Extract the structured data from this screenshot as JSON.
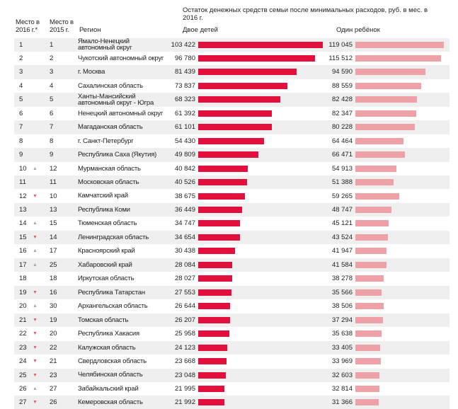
{
  "header": {
    "rank2016": "Место в 2016 г.*",
    "rank2015": "Место в 2015 г.",
    "region": "Регион",
    "title": "Остаток денежных средств семьи после минимальных расходов, руб. в мес. в 2016 г.",
    "two": "Двое детей",
    "one": "Один ребёнок"
  },
  "colors": {
    "two": "#e30f3c",
    "one": "#efa1a8",
    "up": "#aaaaaa",
    "down": "#e8606e"
  },
  "chart_data": {
    "type": "table",
    "title": "Остаток денежных средств семьи после минимальных расходов, руб. в мес. в 2016 г.",
    "series": [
      {
        "name": "Двое детей"
      },
      {
        "name": "Один ребёнок"
      }
    ],
    "rows": [
      {
        "r16": "1",
        "tr": "",
        "r15": "1",
        "region": "Ямало-Ненецкий автономный округ",
        "two": 103422,
        "two_t": "103 422",
        "one": 119045,
        "one_t": "119 045"
      },
      {
        "r16": "2",
        "tr": "",
        "r15": "2",
        "region": "Чукотский автономный округ",
        "two": 96780,
        "two_t": "96 780",
        "one": 115512,
        "one_t": "115 512"
      },
      {
        "r16": "3",
        "tr": "",
        "r15": "3",
        "region": "г. Москва",
        "two": 81439,
        "two_t": "81 439",
        "one": 94590,
        "one_t": "94 590"
      },
      {
        "r16": "4",
        "tr": "",
        "r15": "4",
        "region": "Сахалинская область",
        "two": 73837,
        "two_t": "73 837",
        "one": 88559,
        "one_t": "88 559"
      },
      {
        "r16": "5",
        "tr": "",
        "r15": "5",
        "region": "Ханты-Мансийский автономный округ - Югра",
        "two": 68323,
        "two_t": "68 323",
        "one": 82428,
        "one_t": "82 428"
      },
      {
        "r16": "6",
        "tr": "",
        "r15": "6",
        "region": "Ненецкий автономный округ",
        "two": 61392,
        "two_t": "61 392",
        "one": 82347,
        "one_t": "82 347"
      },
      {
        "r16": "7",
        "tr": "",
        "r15": "7",
        "region": "Магаданская область",
        "two": 61101,
        "two_t": "61 101",
        "one": 80228,
        "one_t": "80 228"
      },
      {
        "r16": "8",
        "tr": "",
        "r15": "8",
        "region": "г. Санкт-Петербург",
        "two": 54430,
        "two_t": "54 430",
        "one": 64464,
        "one_t": "64 464"
      },
      {
        "r16": "9",
        "tr": "",
        "r15": "9",
        "region": "Республика Саха (Якутия)",
        "two": 49809,
        "two_t": "49 809",
        "one": 66471,
        "one_t": "66 471"
      },
      {
        "r16": "10",
        "tr": "up",
        "r15": "12",
        "region": "Мурманская область",
        "two": 40842,
        "two_t": "40 842",
        "one": 54913,
        "one_t": "54 913"
      },
      {
        "r16": "11",
        "tr": "",
        "r15": "11",
        "region": "Московская область",
        "two": 40526,
        "two_t": "40 526",
        "one": 51388,
        "one_t": "51 388"
      },
      {
        "r16": "12",
        "tr": "down",
        "r15": "10",
        "region": "Камчатский край",
        "two": 38675,
        "two_t": "38 675",
        "one": 59265,
        "one_t": "59 265"
      },
      {
        "r16": "13",
        "tr": "",
        "r15": "13",
        "region": "Республика Коми",
        "two": 36449,
        "two_t": "36 449",
        "one": 48747,
        "one_t": "48 747"
      },
      {
        "r16": "14",
        "tr": "up",
        "r15": "15",
        "region": "Тюменская область",
        "two": 34747,
        "two_t": "34 747",
        "one": 45121,
        "one_t": "45 121"
      },
      {
        "r16": "15",
        "tr": "down",
        "r15": "14",
        "region": "Ленинградская область",
        "two": 34654,
        "two_t": "34 654",
        "one": 43524,
        "one_t": "43 524"
      },
      {
        "r16": "16",
        "tr": "up",
        "r15": "17",
        "region": "Красноярский край",
        "two": 30438,
        "two_t": "30 438",
        "one": 41947,
        "one_t": "41 947"
      },
      {
        "r16": "17",
        "tr": "up",
        "r15": "25",
        "region": "Хабаровский край",
        "two": 28084,
        "two_t": "28 084",
        "one": 41584,
        "one_t": "41 584"
      },
      {
        "r16": "18",
        "tr": "",
        "r15": "18",
        "region": "Иркутская область",
        "two": 28027,
        "two_t": "28 027",
        "one": 38278,
        "one_t": "38 278"
      },
      {
        "r16": "19",
        "tr": "down",
        "r15": "16",
        "region": "Республика Татарстан",
        "two": 27553,
        "two_t": "27 553",
        "one": 35566,
        "one_t": "35 566"
      },
      {
        "r16": "20",
        "tr": "up",
        "r15": "30",
        "region": "Архангельская область",
        "two": 26644,
        "two_t": "26 644",
        "one": 38506,
        "one_t": "38 506"
      },
      {
        "r16": "21",
        "tr": "down",
        "r15": "19",
        "region": "Томская область",
        "two": 26207,
        "two_t": "26 207",
        "one": 37294,
        "one_t": "37 294"
      },
      {
        "r16": "22",
        "tr": "down",
        "r15": "20",
        "region": "Республика Хакасия",
        "two": 25958,
        "two_t": "25 958",
        "one": 35638,
        "one_t": "35 638"
      },
      {
        "r16": "23",
        "tr": "down",
        "r15": "22",
        "region": "Калужская область",
        "two": 24123,
        "two_t": "24 123",
        "one": 33405,
        "one_t": "33 405"
      },
      {
        "r16": "24",
        "tr": "down",
        "r15": "21",
        "region": "Свердловская область",
        "two": 23668,
        "two_t": "23 668",
        "one": 33969,
        "one_t": "33 969"
      },
      {
        "r16": "25",
        "tr": "down",
        "r15": "23",
        "region": "Челябинская область",
        "two": 23048,
        "two_t": "23 048",
        "one": 32603,
        "one_t": "32 603"
      },
      {
        "r16": "26",
        "tr": "up",
        "r15": "27",
        "region": "Забайкальский край",
        "two": 21995,
        "two_t": "21 995",
        "one": 32814,
        "one_t": "32 814"
      },
      {
        "r16": "27",
        "tr": "down",
        "r15": "26",
        "region": "Кемеровская область",
        "two": 21992,
        "two_t": "21 992",
        "one": 31366,
        "one_t": "31 366"
      }
    ]
  }
}
